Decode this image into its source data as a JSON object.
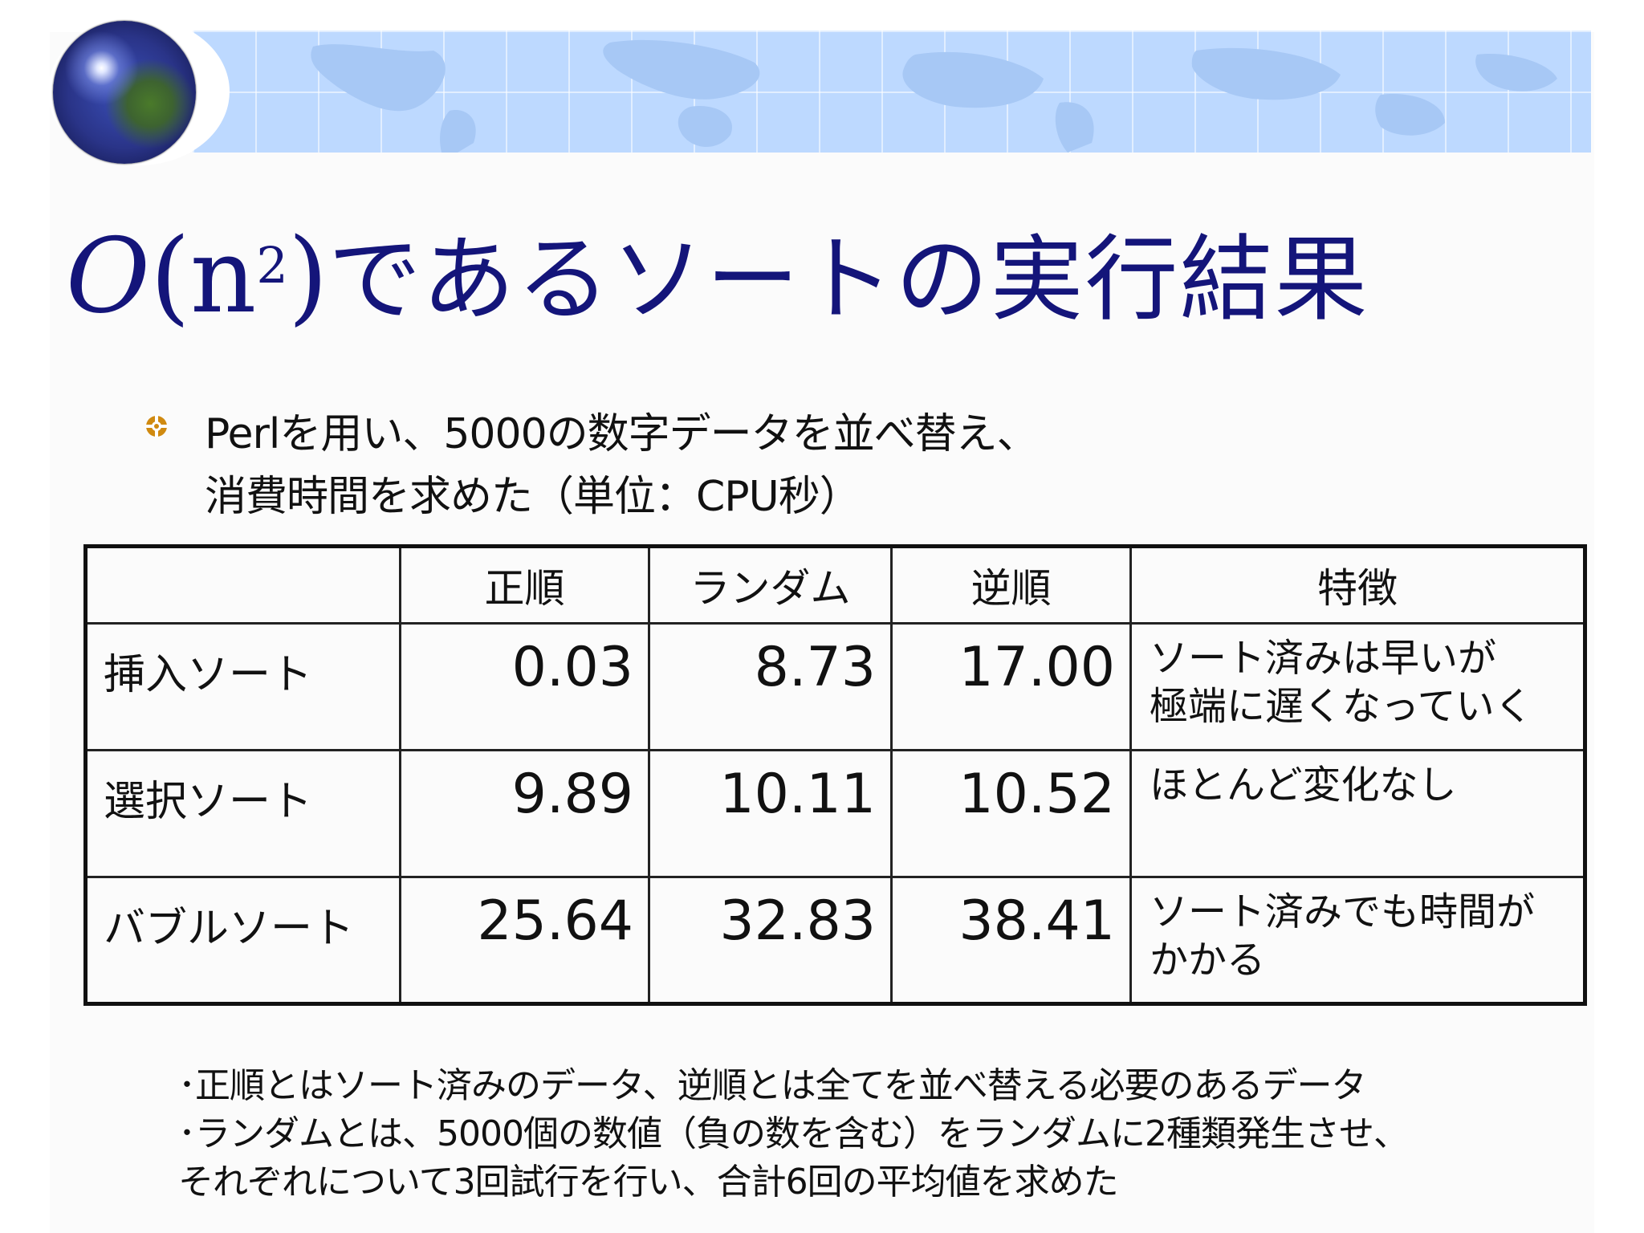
{
  "title": {
    "o_letter": "O",
    "paren_open": "(n",
    "exponent": "2",
    "paren_close": ")",
    "rest": "であるソートの実行結果"
  },
  "bullet": {
    "line1": "Perlを用い、5000の数字データを並べ替え、",
    "line2": "消費時間を求めた（単位：CPU秒）"
  },
  "table": {
    "headers": [
      "",
      "正順",
      "ランダム",
      "逆順",
      "特徴"
    ],
    "rows": [
      {
        "label": "挿入ソート",
        "sorted": "0.03",
        "random": "8.73",
        "reverse": "17.00",
        "feature": [
          "ソート済みは早いが",
          "極端に遅くなっていく"
        ]
      },
      {
        "label": "選択ソート",
        "sorted": "9.89",
        "random": "10.11",
        "reverse": "10.52",
        "feature": [
          "ほとんど変化なし",
          ""
        ]
      },
      {
        "label": "バブルソート",
        "sorted": "25.64",
        "random": "32.83",
        "reverse": "38.41",
        "feature": [
          "ソート済みでも時間が",
          "かかる"
        ]
      }
    ]
  },
  "notes": [
    "･正順とはソート済みのデータ、逆順とは全てを並べ替える必要のあるデータ",
    "･ランダムとは、5000個の数値（負の数を含む）をランダムに2種類発生させ、",
    "それぞれについて3回試行を行い、合計6回の平均値を求めた"
  ],
  "colors": {
    "title": "#14157a",
    "banner": "#bdd9ff",
    "bullet": "#d08a10"
  },
  "icons": {
    "globe": "globe-icon",
    "bullet": "target-bullet-icon"
  }
}
